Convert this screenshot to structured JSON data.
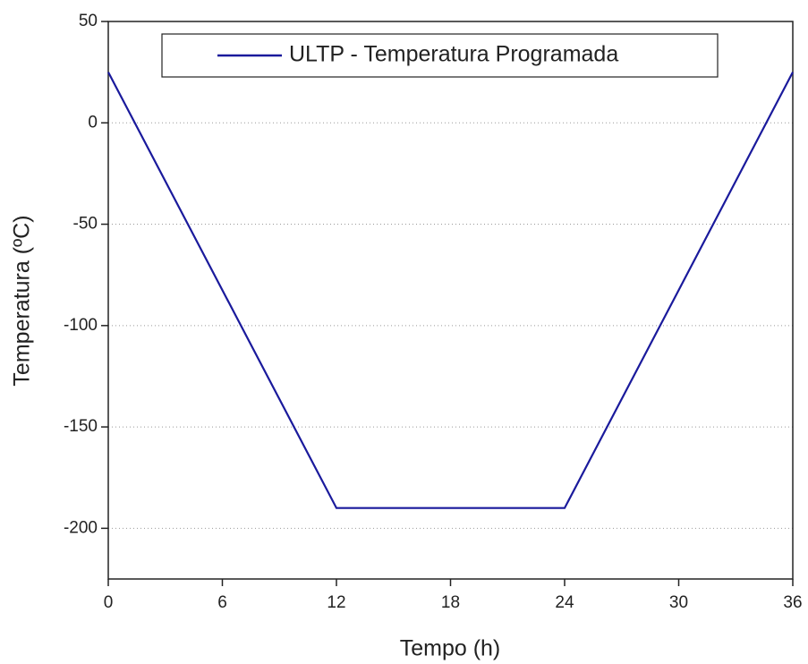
{
  "chart_data": {
    "type": "line",
    "xlabel": "Tempo (h)",
    "ylabel": "Temperatura (ºC)",
    "x": [
      0,
      12,
      24,
      36
    ],
    "series": [
      {
        "name": "ULTP - Temperatura Programada",
        "color": "#1a1a9c",
        "values": [
          25,
          -190,
          -190,
          25
        ]
      }
    ],
    "xlim": [
      0,
      36
    ],
    "xticks": [
      0,
      6,
      12,
      18,
      24,
      30,
      36
    ],
    "ylim": [
      -225,
      50
    ],
    "yticks": [
      -200,
      -150,
      -100,
      -50,
      0,
      50
    ],
    "grid": true,
    "legend": "top"
  }
}
